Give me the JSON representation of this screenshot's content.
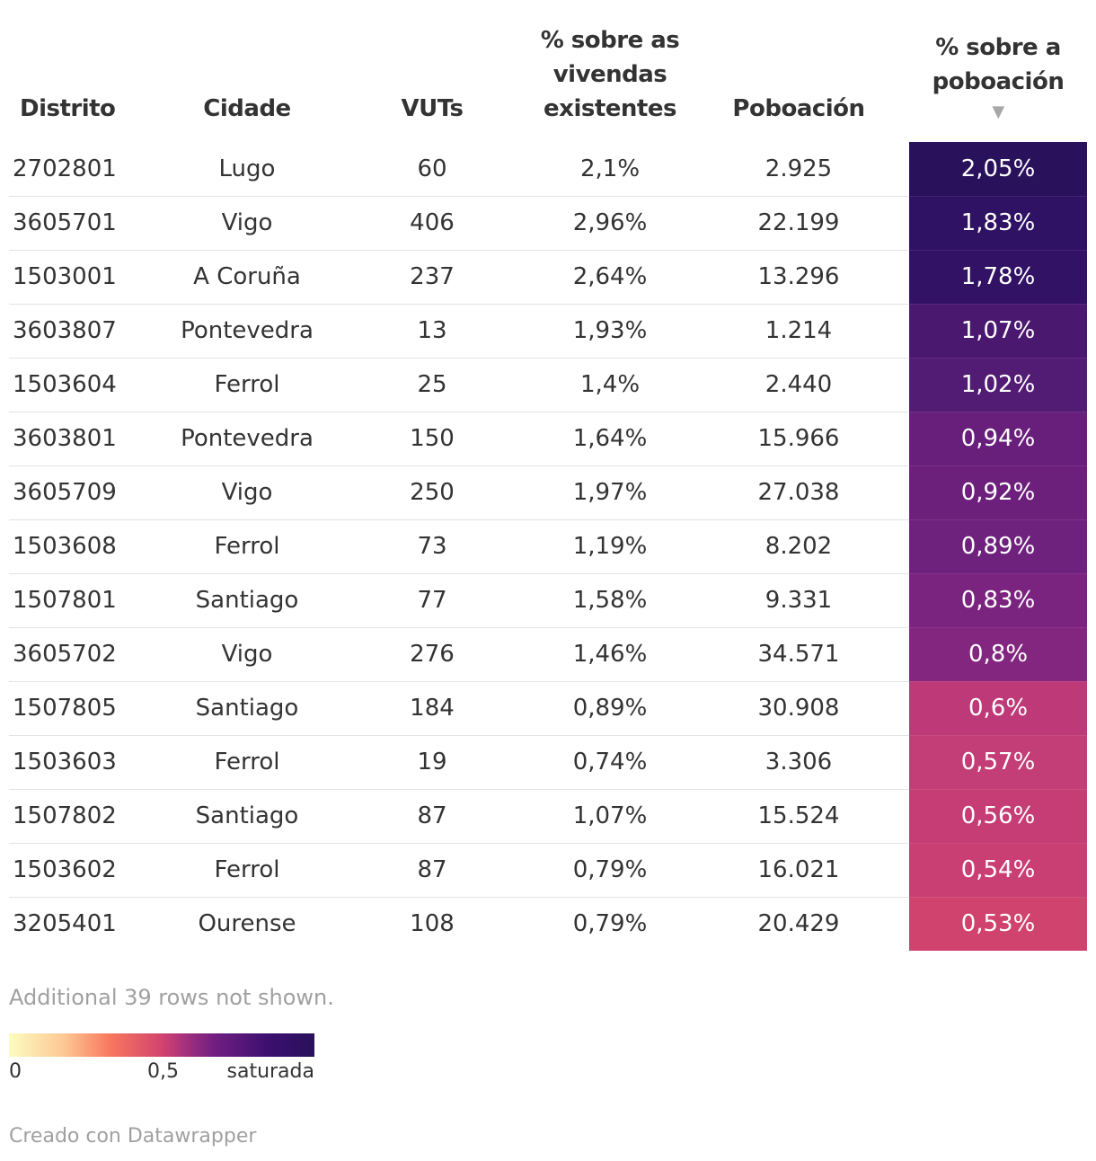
{
  "table": {
    "headers": {
      "distrito": "Distrito",
      "cidade": "Cidade",
      "vuts": "VUTs",
      "pct_vivendas_l1": "% sobre as",
      "pct_vivendas_l2": "vivendas",
      "pct_vivendas_l3": "existentes",
      "poboacion": "Poboación",
      "pct_poboacion_l1": "% sobre a",
      "pct_poboacion_l2": "poboación",
      "sort_indicator": "▼"
    }
  },
  "chart_data": {
    "type": "table",
    "columns": [
      "Distrito",
      "Cidade",
      "VUTs",
      "% sobre as vivendas existentes",
      "Poboación",
      "% sobre a poboación"
    ],
    "sorted_by": "% sobre a poboación",
    "sort_order": "descending",
    "rows": [
      {
        "distrito": "2702801",
        "cidade": "Lugo",
        "vuts": "60",
        "pct_vivendas": "2,1%",
        "poboacion": "2.925",
        "pct_poboacion": "2,05%",
        "value": 2.05
      },
      {
        "distrito": "3605701",
        "cidade": "Vigo",
        "vuts": "406",
        "pct_vivendas": "2,96%",
        "poboacion": "22.199",
        "pct_poboacion": "1,83%",
        "value": 1.83
      },
      {
        "distrito": "1503001",
        "cidade": "A Coruña",
        "vuts": "237",
        "pct_vivendas": "2,64%",
        "poboacion": "13.296",
        "pct_poboacion": "1,78%",
        "value": 1.78
      },
      {
        "distrito": "3603807",
        "cidade": "Pontevedra",
        "vuts": "13",
        "pct_vivendas": "1,93%",
        "poboacion": "1.214",
        "pct_poboacion": "1,07%",
        "value": 1.07
      },
      {
        "distrito": "1503604",
        "cidade": "Ferrol",
        "vuts": "25",
        "pct_vivendas": "1,4%",
        "poboacion": "2.440",
        "pct_poboacion": "1,02%",
        "value": 1.02
      },
      {
        "distrito": "3603801",
        "cidade": "Pontevedra",
        "vuts": "150",
        "pct_vivendas": "1,64%",
        "poboacion": "15.966",
        "pct_poboacion": "0,94%",
        "value": 0.94
      },
      {
        "distrito": "3605709",
        "cidade": "Vigo",
        "vuts": "250",
        "pct_vivendas": "1,97%",
        "poboacion": "27.038",
        "pct_poboacion": "0,92%",
        "value": 0.92
      },
      {
        "distrito": "1503608",
        "cidade": "Ferrol",
        "vuts": "73",
        "pct_vivendas": "1,19%",
        "poboacion": "8.202",
        "pct_poboacion": "0,89%",
        "value": 0.89
      },
      {
        "distrito": "1507801",
        "cidade": "Santiago",
        "vuts": "77",
        "pct_vivendas": "1,58%",
        "poboacion": "9.331",
        "pct_poboacion": "0,83%",
        "value": 0.83
      },
      {
        "distrito": "3605702",
        "cidade": "Vigo",
        "vuts": "276",
        "pct_vivendas": "1,46%",
        "poboacion": "34.571",
        "pct_poboacion": "0,8%",
        "value": 0.8
      },
      {
        "distrito": "1507805",
        "cidade": "Santiago",
        "vuts": "184",
        "pct_vivendas": "0,89%",
        "poboacion": "30.908",
        "pct_poboacion": "0,6%",
        "value": 0.6
      },
      {
        "distrito": "1503603",
        "cidade": "Ferrol",
        "vuts": "19",
        "pct_vivendas": "0,74%",
        "poboacion": "3.306",
        "pct_poboacion": "0,57%",
        "value": 0.57
      },
      {
        "distrito": "1507802",
        "cidade": "Santiago",
        "vuts": "87",
        "pct_vivendas": "1,07%",
        "poboacion": "15.524",
        "pct_poboacion": "0,56%",
        "value": 0.56
      },
      {
        "distrito": "1503602",
        "cidade": "Ferrol",
        "vuts": "87",
        "pct_vivendas": "0,79%",
        "poboacion": "16.021",
        "pct_poboacion": "0,54%",
        "value": 0.54
      },
      {
        "distrito": "3205401",
        "cidade": "Ourense",
        "vuts": "108",
        "pct_vivendas": "0,79%",
        "poboacion": "20.429",
        "pct_poboacion": "0,53%",
        "value": 0.53
      }
    ],
    "colorscale": {
      "column": "% sobre a poboación",
      "min_label": "0",
      "mid_label": "0,5",
      "max_label": "saturada",
      "colors": [
        "#fcfdbf",
        "#fdc894",
        "#f8785e",
        "#d3436e",
        "#a3307e",
        "#721f81",
        "#3b0f70",
        "#29115a"
      ],
      "cell_colors": [
        "#2a115c",
        "#2f1263",
        "#321265",
        "#4b1870",
        "#521b74",
        "#681f7b",
        "#6c207c",
        "#6f227d",
        "#7b247f",
        "#82267f",
        "#bd3977",
        "#c33d76",
        "#c63d75",
        "#ca3f73",
        "#d0436f"
      ]
    }
  },
  "notes": {
    "rows_hidden": "Additional 39 rows not shown."
  },
  "legend": {
    "min": "0",
    "mid": "0,5",
    "max": "saturada"
  },
  "credit": "Creado con Datawrapper"
}
